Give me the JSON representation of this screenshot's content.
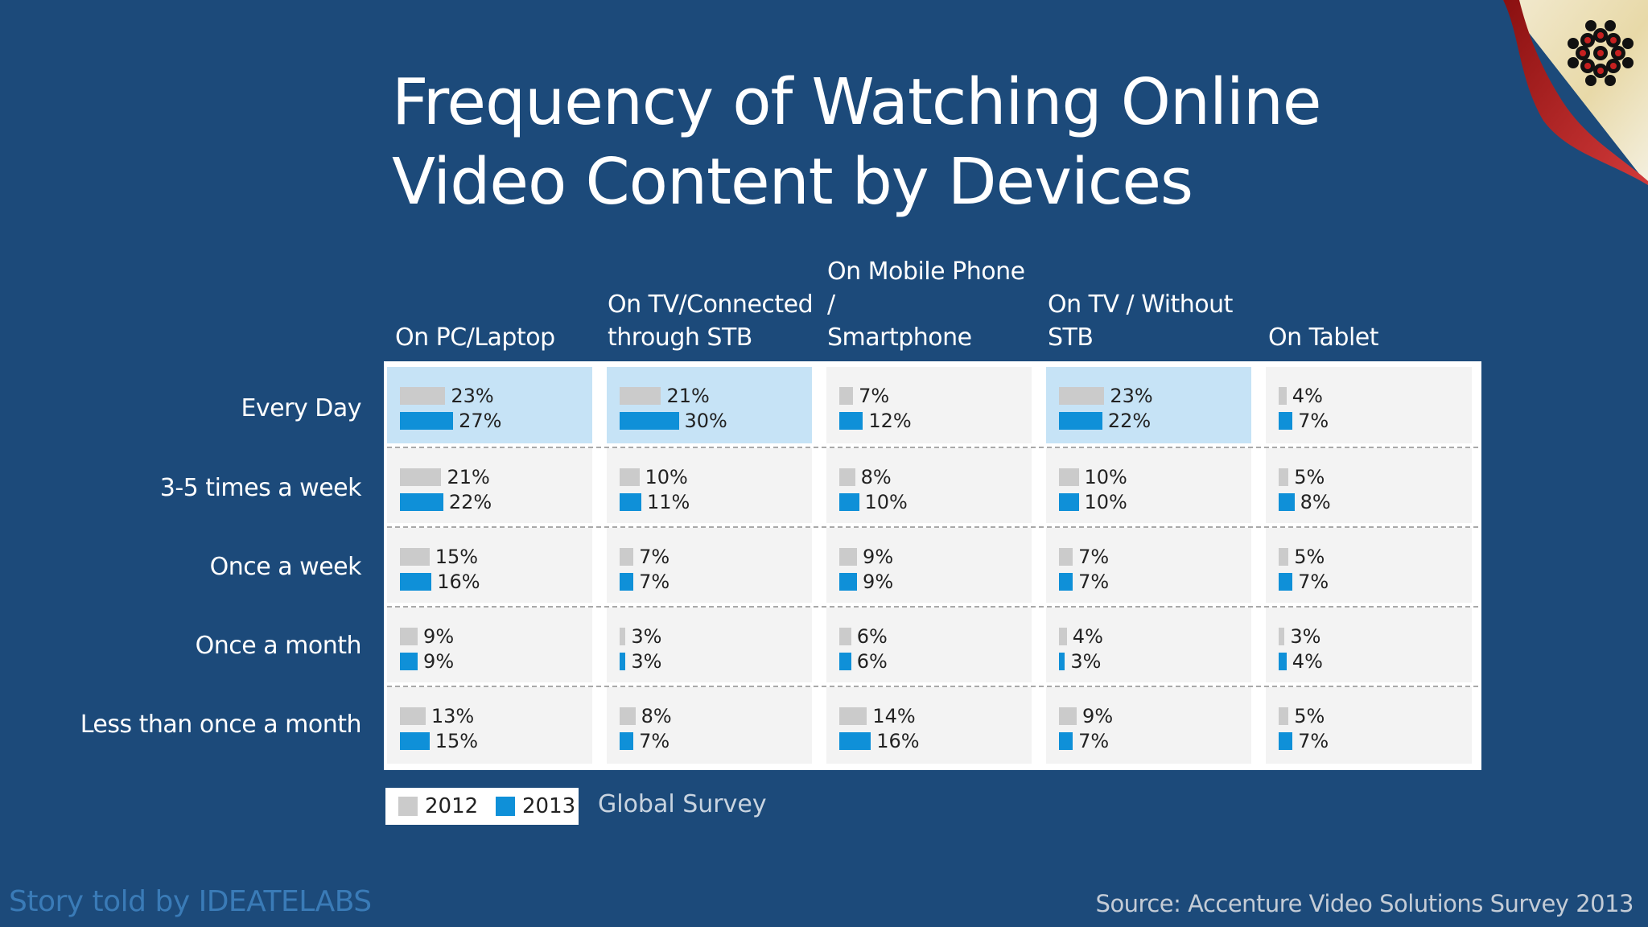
{
  "title_lines": [
    "Frequency of Watching Online",
    "Video Content by Devices"
  ],
  "legend": {
    "items": [
      {
        "label": "2012",
        "color": "#cbcbcb"
      },
      {
        "label": "2013",
        "color": "#0f90d8"
      }
    ],
    "note": "Global Survey"
  },
  "credit": "Story told by IDEATELABS",
  "source": "Source: Accenture Video Solutions Survey 2013",
  "colors": {
    "background": "#1c4a7a",
    "bar_2012": "#cbcbcb",
    "bar_2013": "#0f90d8",
    "highlight": "#c6e3f6",
    "cell": "#f3f3f3"
  },
  "chart_data": {
    "type": "bar",
    "title": "Frequency of Watching Online Video Content by Devices",
    "devices": [
      {
        "line1": "On PC/Laptop",
        "line2": ""
      },
      {
        "line1": "On TV/Connected",
        "line2": "through STB"
      },
      {
        "line1": "On Mobile Phone /",
        "line2": "Smartphone"
      },
      {
        "line1": "On TV / Without",
        "line2": "STB"
      },
      {
        "line1": "On Tablet",
        "line2": ""
      }
    ],
    "frequencies": [
      "Every Day",
      "3-5 times a week",
      "Once a week",
      "Once a month",
      "Less than once a month"
    ],
    "series": [
      {
        "name": "2012",
        "values": [
          [
            23,
            21,
            7,
            23,
            4
          ],
          [
            21,
            10,
            8,
            10,
            5
          ],
          [
            15,
            7,
            9,
            7,
            5
          ],
          [
            9,
            3,
            6,
            4,
            3
          ],
          [
            13,
            8,
            14,
            9,
            5
          ]
        ]
      },
      {
        "name": "2013",
        "values": [
          [
            27,
            30,
            12,
            22,
            7
          ],
          [
            22,
            11,
            10,
            10,
            8
          ],
          [
            16,
            7,
            9,
            7,
            7
          ],
          [
            9,
            3,
            6,
            3,
            4
          ],
          [
            15,
            7,
            16,
            7,
            7
          ]
        ]
      }
    ],
    "highlighted": [
      [
        0,
        0
      ],
      [
        0,
        1
      ],
      [
        0,
        3
      ]
    ],
    "unit": "%"
  }
}
